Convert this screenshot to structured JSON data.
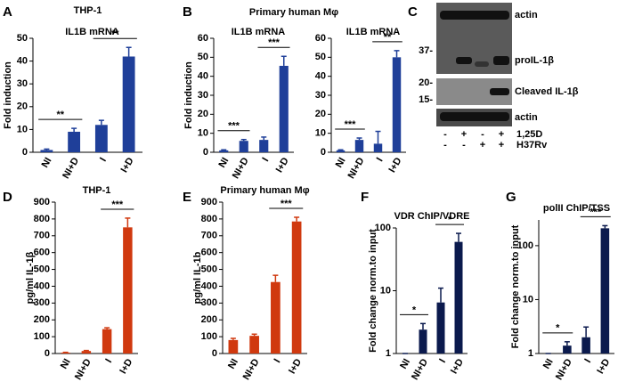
{
  "panel_labels": [
    "A",
    "B",
    "C",
    "D",
    "E",
    "F",
    "G"
  ],
  "panel_b_title": "Primary human Mφ",
  "chart_data": [
    {
      "type": "bar",
      "title": "THP-1",
      "subtitle": "IL1B mRNA",
      "ylabel": "Fold induction",
      "color": "#1f3f99",
      "categories": [
        "NI",
        "NI+D",
        "I",
        "I+D"
      ],
      "values": [
        1,
        9,
        12,
        42
      ],
      "errors": [
        0.4,
        1.5,
        2,
        4
      ],
      "ylim": [
        0,
        50
      ],
      "yticks": [
        0,
        10,
        20,
        30,
        40,
        50
      ],
      "annotations": [
        {
          "text": "**",
          "from": 0,
          "to": 1
        },
        {
          "text": "**",
          "from": 2,
          "to": 3
        }
      ]
    },
    {
      "type": "bar",
      "subtitle": "IL1B mRNA",
      "ylabel": "Fold induction",
      "color": "#1f3f99",
      "categories": [
        "NI",
        "NI+D",
        "I",
        "I+D"
      ],
      "values": [
        1,
        6,
        6.5,
        45.5
      ],
      "errors": [
        0.3,
        0.7,
        1.5,
        5
      ],
      "ylim": [
        0,
        60
      ],
      "yticks": [
        0,
        10,
        20,
        30,
        40,
        50,
        60
      ],
      "annotations": [
        {
          "text": "***",
          "from": 0,
          "to": 1
        },
        {
          "text": "***",
          "from": 2,
          "to": 3
        }
      ]
    },
    {
      "type": "bar",
      "subtitle": "IL1B mRNA",
      "color": "#1f3f99",
      "categories": [
        "NI",
        "NI+D",
        "I",
        "I+D"
      ],
      "values": [
        1,
        6.5,
        4.5,
        50
      ],
      "errors": [
        0.3,
        1,
        6.5,
        3.5
      ],
      "ylim": [
        0,
        60
      ],
      "yticks": [
        0,
        10,
        20,
        30,
        40,
        50,
        60
      ],
      "annotations": [
        {
          "text": "***",
          "from": 0,
          "to": 1
        },
        {
          "text": "**",
          "from": 2,
          "to": 3
        }
      ]
    },
    {
      "type": "bar",
      "title": "THP-1",
      "ylabel": "pg/ml IL-1β",
      "color": "#d0390f",
      "categories": [
        "NI",
        "NI+D",
        "I",
        "I+D"
      ],
      "values": [
        5,
        15,
        145,
        750
      ],
      "errors": [
        2,
        3,
        8,
        55
      ],
      "ylim": [
        0,
        900
      ],
      "yticks": [
        0,
        100,
        200,
        300,
        400,
        500,
        600,
        700,
        800,
        900
      ],
      "annotations": [
        {
          "text": "***",
          "from": 2,
          "to": 3
        }
      ]
    },
    {
      "type": "bar",
      "title": "Primary human Mφ",
      "ylabel": "pg/ml IL-1b",
      "color": "#d0390f",
      "categories": [
        "NI",
        "NI+D",
        "I",
        "I+D"
      ],
      "values": [
        80,
        105,
        425,
        785
      ],
      "errors": [
        10,
        10,
        40,
        25
      ],
      "ylim": [
        0,
        900
      ],
      "yticks": [
        0,
        100,
        200,
        300,
        400,
        500,
        600,
        700,
        800,
        900
      ],
      "annotations": [
        {
          "text": "***",
          "from": 2,
          "to": 3
        }
      ]
    },
    {
      "type": "bar",
      "title": "VDR ChIP/VDRE",
      "ylabel": "Fold change norm.to input",
      "color": "#0b1a4d",
      "log_scale": true,
      "categories": [
        "NI",
        "NI+D",
        "I",
        "I+D"
      ],
      "values": [
        1,
        2.4,
        6.5,
        60
      ],
      "errors": [
        0,
        0.6,
        4.5,
        22
      ],
      "ylim": [
        1,
        100
      ],
      "yticks": [
        1,
        10,
        100
      ],
      "annotations": [
        {
          "text": "*",
          "from": 0,
          "to": 1
        },
        {
          "text": "*",
          "from": 2,
          "to": 3
        }
      ]
    },
    {
      "type": "bar",
      "title": "polII ChIP/TSS",
      "ylabel": "Fold change norm.to input",
      "color": "#0b1a4d",
      "log_scale": true,
      "categories": [
        "NI",
        "NI+D",
        "I",
        "I+D"
      ],
      "values": [
        1,
        1.4,
        2,
        210
      ],
      "errors": [
        0,
        0.25,
        1.1,
        25
      ],
      "ylim": [
        1,
        300
      ],
      "yticks": [
        1,
        10,
        100
      ],
      "annotations": [
        {
          "text": "*",
          "from": 0,
          "to": 1
        },
        {
          "text": "***",
          "from": 2,
          "to": 3
        }
      ]
    }
  ],
  "blot": {
    "band_labels": [
      "actin",
      "proIL-1β",
      "Cleaved IL-1β",
      "actin"
    ],
    "markers": [
      "37-",
      "20-",
      "15-"
    ],
    "rows": [
      {
        "signs": [
          "-",
          "+",
          "-",
          "+"
        ],
        "label": "1,25D"
      },
      {
        "signs": [
          "-",
          "-",
          "+",
          "+"
        ],
        "label": "H37Rv"
      }
    ]
  }
}
